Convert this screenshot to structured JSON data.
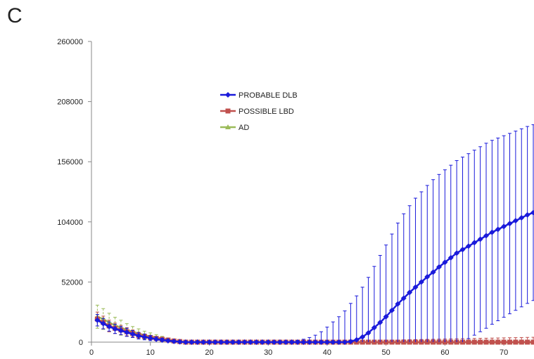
{
  "panel_label": "C",
  "chart_data": {
    "type": "line",
    "title": "",
    "xlabel": "",
    "ylabel": "",
    "xlim": [
      0,
      75
    ],
    "ylim": [
      0,
      260000
    ],
    "x_ticks": [
      0,
      10,
      20,
      30,
      40,
      50,
      60,
      70
    ],
    "y_ticks": [
      0,
      52000,
      104000,
      156000,
      208000,
      260000
    ],
    "legend_position": "upper-middle",
    "grid": false,
    "x": [
      1,
      2,
      3,
      4,
      5,
      6,
      7,
      8,
      9,
      10,
      11,
      12,
      13,
      14,
      15,
      16,
      17,
      18,
      19,
      20,
      21,
      22,
      23,
      24,
      25,
      26,
      27,
      28,
      29,
      30,
      31,
      32,
      33,
      34,
      35,
      36,
      37,
      38,
      39,
      40,
      41,
      42,
      43,
      44,
      45,
      46,
      47,
      48,
      49,
      50,
      51,
      52,
      53,
      54,
      55,
      56,
      57,
      58,
      59,
      60,
      61,
      62,
      63,
      64,
      65,
      66,
      67,
      68,
      69,
      70,
      71,
      72,
      73,
      74,
      75
    ],
    "series": [
      {
        "name": "PROBABLE DLB",
        "color": "#1a1adb",
        "marker": "diamond",
        "values": [
          19000,
          16000,
          13500,
          11500,
          10000,
          8500,
          7000,
          5500,
          4500,
          3500,
          2500,
          1800,
          1200,
          700,
          300,
          0,
          0,
          0,
          0,
          0,
          0,
          0,
          0,
          0,
          0,
          0,
          0,
          0,
          0,
          0,
          0,
          0,
          0,
          0,
          0,
          0,
          0,
          0,
          0,
          0,
          0,
          0,
          0,
          500,
          2000,
          4500,
          8000,
          12500,
          17000,
          22000,
          27500,
          33000,
          38000,
          43000,
          47500,
          52000,
          56500,
          60500,
          65000,
          69000,
          73000,
          77000,
          80000,
          83000,
          86000,
          89000,
          92000,
          95000,
          97500,
          100000,
          102500,
          105000,
          107500,
          110000,
          112000
        ],
        "errors": [
          5000,
          4500,
          4000,
          4000,
          3500,
          3500,
          3000,
          2800,
          2500,
          2200,
          2000,
          1500,
          1200,
          800,
          500,
          0,
          0,
          0,
          0,
          0,
          0,
          0,
          0,
          0,
          0,
          0,
          0,
          0,
          0,
          0,
          0,
          0,
          500,
          1000,
          1500,
          2500,
          4000,
          6000,
          9000,
          13000,
          17500,
          22000,
          27000,
          33000,
          38000,
          43000,
          48000,
          53000,
          58000,
          62000,
          66000,
          70000,
          73000,
          75000,
          77000,
          78000,
          79000,
          80000,
          80000,
          80000,
          80000,
          80000,
          80000,
          80000,
          80000,
          80000,
          80000,
          79500,
          79000,
          78500,
          78000,
          77500,
          77000,
          76500,
          76000
        ]
      },
      {
        "name": "POSSIBLE LBD",
        "color": "#c0504d",
        "marker": "square",
        "values": [
          20000,
          17000,
          14000,
          12000,
          10500,
          9000,
          7500,
          6000,
          5000,
          4000,
          3200,
          2500,
          1800,
          1000,
          500,
          0,
          0,
          0,
          0,
          0,
          0,
          0,
          0,
          0,
          0,
          0,
          0,
          0,
          0,
          0,
          0,
          0,
          0,
          0,
          0,
          0,
          0,
          0,
          0,
          0,
          0,
          0,
          0,
          0,
          0,
          0,
          0,
          0,
          0,
          0,
          0,
          0,
          0,
          0,
          0,
          0,
          0,
          0,
          0,
          0,
          0,
          0,
          0,
          0,
          0,
          0,
          0,
          0,
          0,
          0,
          0,
          0,
          0,
          0,
          0
        ],
        "errors": [
          6000,
          5500,
          5000,
          4500,
          4000,
          3500,
          3000,
          2500,
          2000,
          1800,
          1500,
          1200,
          1000,
          700,
          400,
          300,
          300,
          300,
          300,
          300,
          300,
          300,
          300,
          300,
          300,
          300,
          300,
          300,
          300,
          300,
          300,
          300,
          300,
          300,
          300,
          300,
          300,
          300,
          300,
          300,
          300,
          300,
          300,
          400,
          500,
          600,
          800,
          1000,
          1200,
          1400,
          1600,
          1800,
          2000,
          2100,
          2200,
          2300,
          2400,
          2500,
          2600,
          2700,
          2800,
          2900,
          3000,
          3100,
          3200,
          3300,
          3400,
          3500,
          3600,
          3700,
          3800,
          3900,
          4000,
          4100,
          4200
        ]
      },
      {
        "name": "AD",
        "color": "#9bbb59",
        "marker": "triangle",
        "values": [
          22000,
          20000,
          17000,
          14500,
          12500,
          10500,
          9000,
          7500,
          6000,
          5000,
          4000,
          3000,
          2000,
          1200,
          500,
          0,
          0,
          0,
          0,
          0,
          0,
          0,
          0,
          0,
          0,
          0,
          0,
          0,
          0,
          0,
          0,
          0,
          0,
          0,
          0,
          0,
          0,
          0,
          0,
          0,
          0,
          0,
          0,
          0,
          0,
          0,
          0,
          0,
          0,
          0,
          0,
          0,
          0,
          0,
          0,
          0,
          0,
          0,
          0,
          0,
          0,
          0,
          0,
          0,
          0,
          0,
          0,
          0,
          0,
          0,
          0,
          0,
          0,
          0,
          0
        ],
        "errors": [
          10000,
          9000,
          8000,
          7000,
          6500,
          5500,
          4500,
          4000,
          3500,
          3000,
          2500,
          2000,
          1500,
          1000,
          500,
          300,
          300,
          300,
          300,
          300,
          300,
          300,
          300,
          300,
          300,
          300,
          300,
          300,
          300,
          300,
          300,
          300,
          300,
          300,
          300,
          300,
          300,
          300,
          300,
          300,
          300,
          300,
          300,
          300,
          300,
          300,
          300,
          300,
          300,
          300,
          300,
          300,
          300,
          300,
          300,
          300,
          300,
          300,
          300,
          300,
          300,
          300,
          300,
          300,
          300,
          300,
          300,
          300,
          300,
          300,
          300,
          300,
          300,
          300,
          300
        ]
      }
    ]
  }
}
